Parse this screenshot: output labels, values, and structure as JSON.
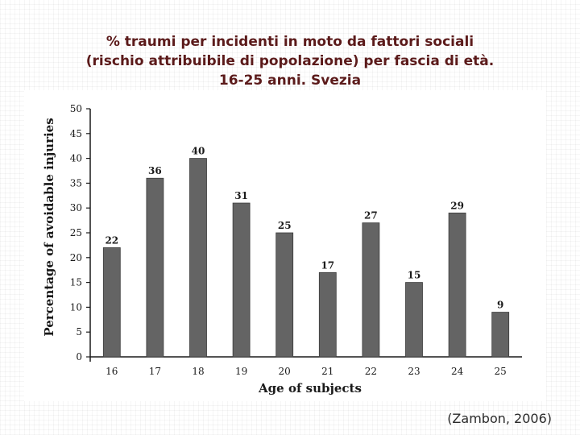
{
  "slide": {
    "title_lines": [
      "% traumi per incidenti in moto da fattori sociali",
      "(rischio attribuibile di popolazione) per fascia di età.",
      "16-25 anni. Svezia"
    ],
    "citation": "(Zambon, 2006)"
  },
  "colors": {
    "bar": "#646464",
    "axis": "#1a1a1a",
    "title": "#5b1a1a"
  },
  "chart_data": {
    "type": "bar",
    "categories": [
      "16",
      "17",
      "18",
      "19",
      "20",
      "21",
      "22",
      "23",
      "24",
      "25"
    ],
    "values": [
      22,
      36,
      40,
      31,
      25,
      17,
      27,
      15,
      29,
      9
    ],
    "data_labels": [
      "22",
      "36",
      "40",
      "31",
      "25",
      "17",
      "27",
      "15",
      "29",
      "9"
    ],
    "xlabel": "Age of subjects",
    "ylabel": "Percentage of avoidable injuries",
    "ylim": [
      0,
      50
    ],
    "yticks": [
      0,
      5,
      10,
      15,
      20,
      25,
      30,
      35,
      40,
      45,
      50
    ],
    "grid": false,
    "legend": "none"
  }
}
